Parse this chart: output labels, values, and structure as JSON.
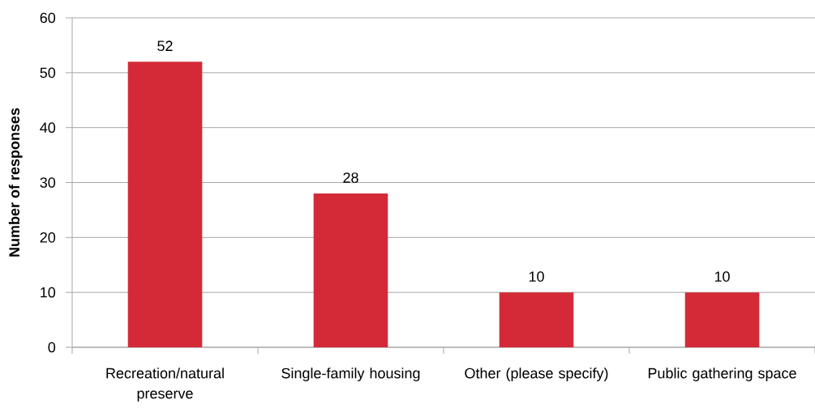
{
  "chart_data": {
    "type": "bar",
    "ylabel": "Number of responses",
    "categories": [
      "Recreation/natural preserve",
      "Single-family housing",
      "Other (please specify)",
      "Public gathering space"
    ],
    "values": [
      52,
      28,
      10,
      10
    ],
    "color": "#d42a38",
    "ylim": [
      0,
      60
    ],
    "yticks": [
      0,
      10,
      20,
      30,
      40,
      50,
      60
    ],
    "grid": "y",
    "data_labels": true
  }
}
